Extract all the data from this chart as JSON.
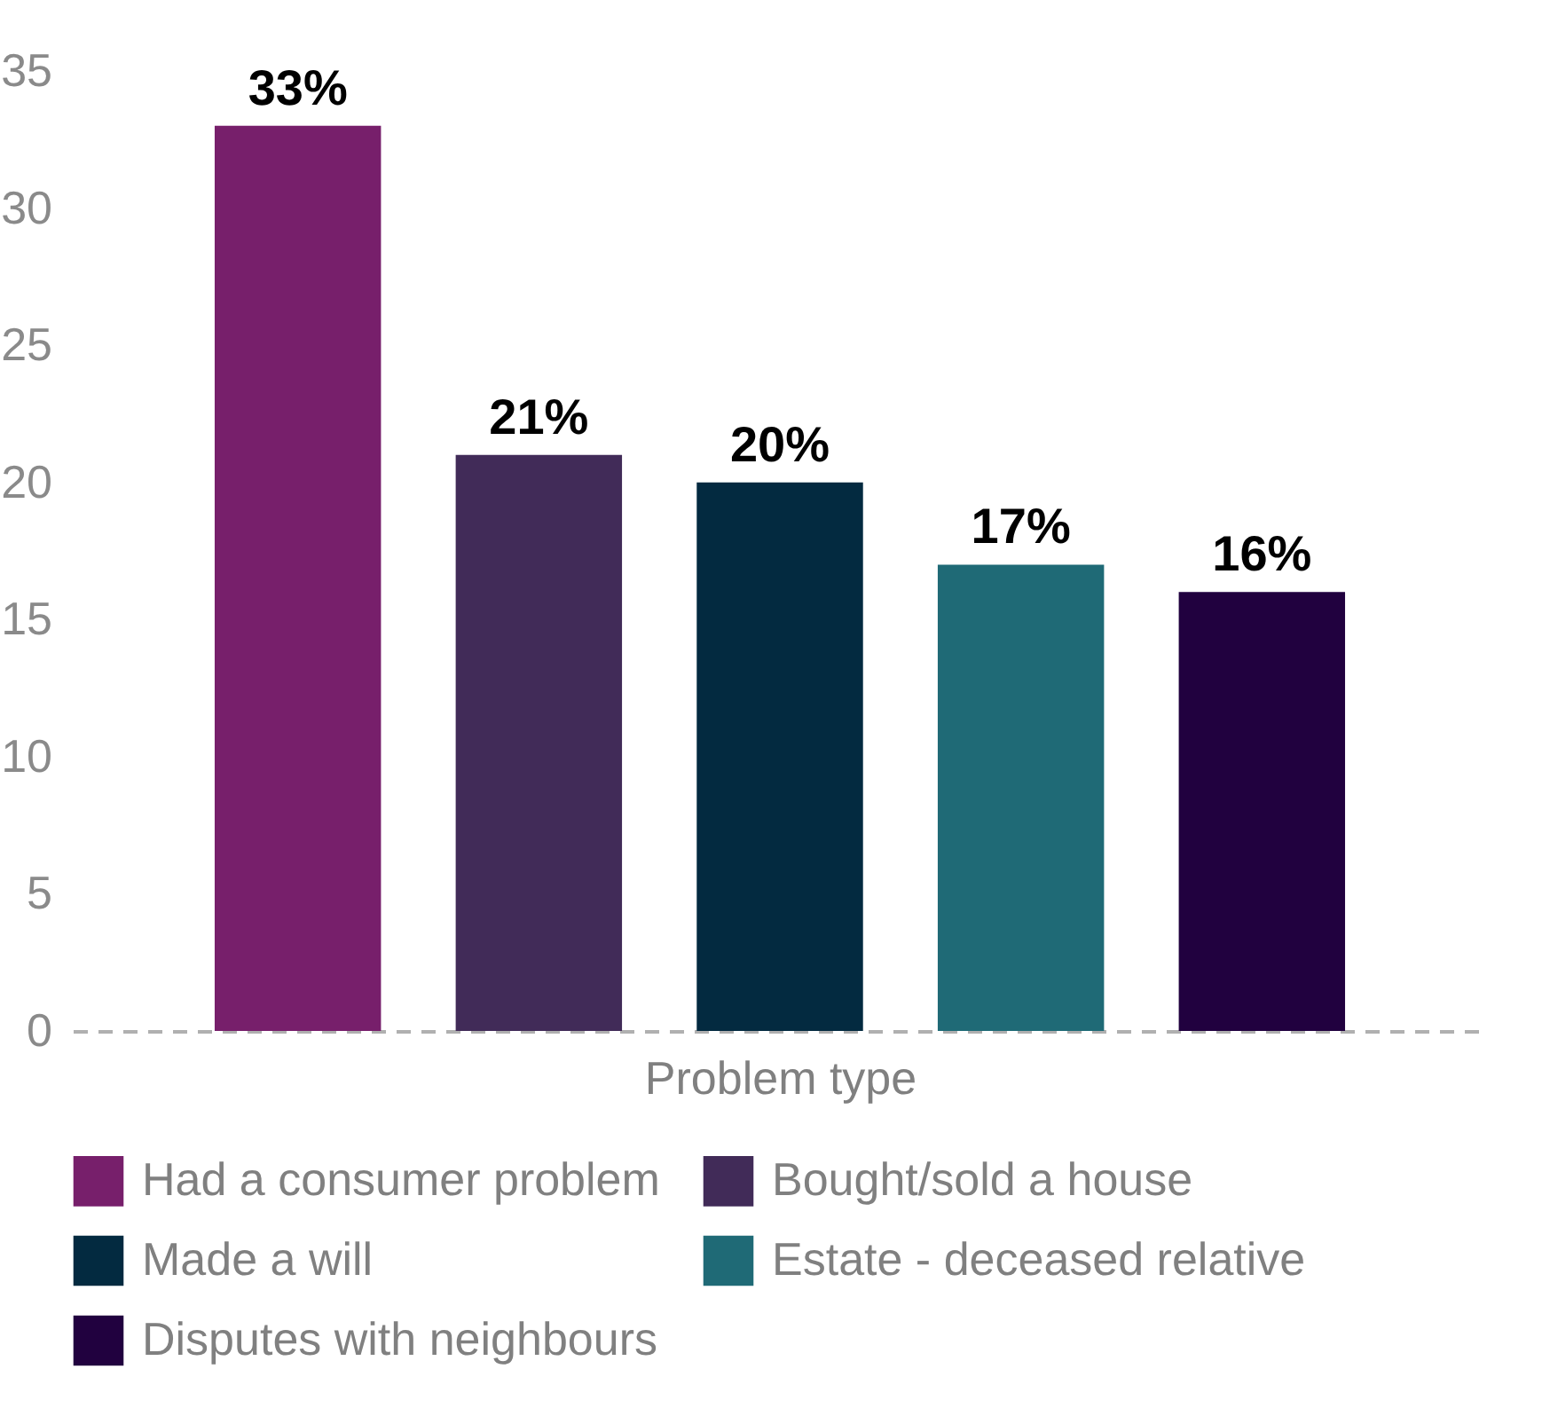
{
  "chart_data": {
    "type": "bar",
    "xlabel": "Problem type",
    "categories": [
      null
    ],
    "series": [
      {
        "name": "Had a consumer problem",
        "color": "#771f6b",
        "values": [
          33
        ],
        "value_labels": [
          "33%"
        ]
      },
      {
        "name": "Bought/sold a house",
        "color": "#412b58",
        "values": [
          21
        ],
        "value_labels": [
          "21%"
        ]
      },
      {
        "name": "Made a will",
        "color": "#032a40",
        "values": [
          20
        ],
        "value_labels": [
          "20%"
        ]
      },
      {
        "name": "Estate - deceased relative",
        "color": "#1f6a76",
        "values": [
          17
        ],
        "value_labels": [
          "17%"
        ]
      },
      {
        "name": "Disputes with neighbours",
        "color": "#21013f",
        "values": [
          16
        ],
        "value_labels": [
          "16%"
        ]
      }
    ],
    "ylim": [
      0,
      35
    ],
    "yticks": [
      0,
      5,
      10,
      15,
      20,
      25,
      30,
      35
    ],
    "grid": false,
    "legend": "bottom"
  }
}
